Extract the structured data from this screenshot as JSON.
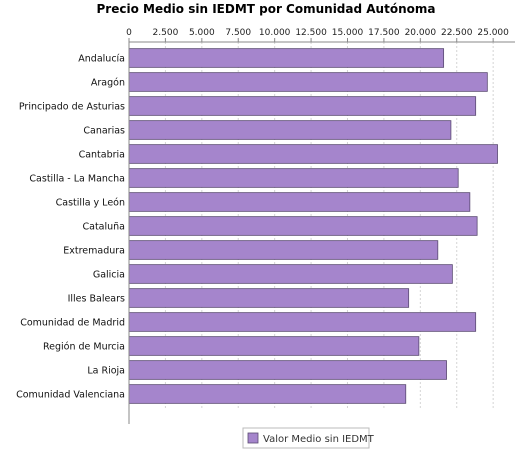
{
  "chart_data": {
    "type": "bar",
    "orientation": "horizontal",
    "title": "Precio Medio sin IEDMT por Comunidad Autónoma",
    "xlabel": "",
    "ylabel": "",
    "xlim": [
      0,
      26500
    ],
    "xticks": [
      0,
      2500,
      5000,
      7500,
      10000,
      12500,
      15000,
      17500,
      20000,
      22500,
      25000
    ],
    "xtick_labels": [
      "0",
      "2.500",
      "5.000",
      "7.500",
      "10.000",
      "12.500",
      "15.000",
      "17.500",
      "20.000",
      "22.500",
      "25.000"
    ],
    "x_axis_position": "top",
    "grid": true,
    "legend_position": "bottom-center",
    "categories": [
      "Andalucía",
      "Aragón",
      "Principado de Asturias",
      "Canarias",
      "Cantabria",
      "Castilla - La Mancha",
      "Castilla y León",
      "Cataluña",
      "Extremadura",
      "Galicia",
      "Illes Balears",
      "Comunidad de Madrid",
      "Región de Murcia",
      "La Rioja",
      "Comunidad Valenciana"
    ],
    "series": [
      {
        "name": "Valor Medio sin IEDMT",
        "color": "#a585cc",
        "values": [
          21600,
          24600,
          23800,
          22100,
          25300,
          22600,
          23400,
          23900,
          21200,
          22200,
          19200,
          23800,
          19900,
          21800,
          19000
        ]
      }
    ]
  }
}
